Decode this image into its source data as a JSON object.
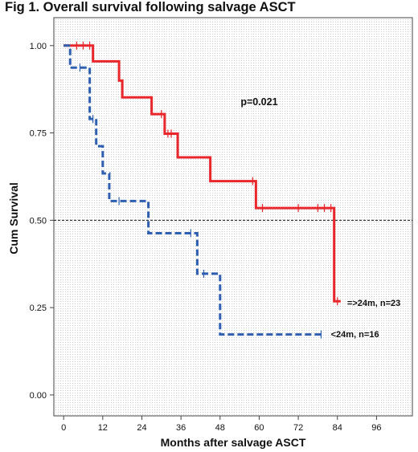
{
  "figure": {
    "title": "Fig 1. Overall survival following salvage ASCT"
  },
  "chart_data": {
    "type": "line",
    "title": "Fig 1. Overall survival following salvage ASCT",
    "xlabel": "Months after salvage ASCT",
    "ylabel": "Cum Survival",
    "xlim": [
      -3,
      107
    ],
    "ylim": [
      -0.06,
      1.08
    ],
    "x_ticks": [
      0,
      12,
      24,
      36,
      48,
      60,
      72,
      84,
      96
    ],
    "y_ticks": [
      0.0,
      0.25,
      0.5,
      0.75,
      1.0
    ],
    "y_tick_labels": [
      "0.00",
      "0.25",
      "0.50",
      "0.75",
      "1.00"
    ],
    "reference_line": {
      "y": 0.5,
      "style": "dashed"
    },
    "grid": "dotted background",
    "annotation": {
      "text": "p=0.021",
      "x": 60,
      "y": 0.83
    },
    "series": [
      {
        "label": "=>24m, n=23",
        "color": "#e8262b",
        "style": "solid",
        "steps": [
          [
            0,
            1.0
          ],
          [
            9,
            0.955
          ],
          [
            17,
            0.9
          ],
          [
            18,
            0.852
          ],
          [
            27,
            0.804
          ],
          [
            31,
            0.748
          ],
          [
            35,
            0.68
          ],
          [
            45,
            0.612
          ],
          [
            59,
            0.535
          ],
          [
            83,
            0.268
          ]
        ],
        "end_x": 85,
        "censor_x": [
          4,
          6,
          8,
          30,
          32,
          33,
          58,
          61,
          72,
          78,
          80,
          82,
          84
        ],
        "label_pos": [
          87,
          0.255
        ]
      },
      {
        "label": "<24m, n=16",
        "color": "#2e5fb0",
        "style": "dashed",
        "steps": [
          [
            0,
            1.0
          ],
          [
            2,
            0.937
          ],
          [
            8,
            0.79
          ],
          [
            10,
            0.712
          ],
          [
            12,
            0.634
          ],
          [
            14,
            0.555
          ],
          [
            26,
            0.463
          ],
          [
            41,
            0.347
          ],
          [
            48,
            0.173
          ]
        ],
        "end_x": 79,
        "censor_x": [
          5,
          9,
          17,
          39,
          43,
          79
        ],
        "label_pos": [
          82,
          0.165
        ]
      }
    ]
  }
}
